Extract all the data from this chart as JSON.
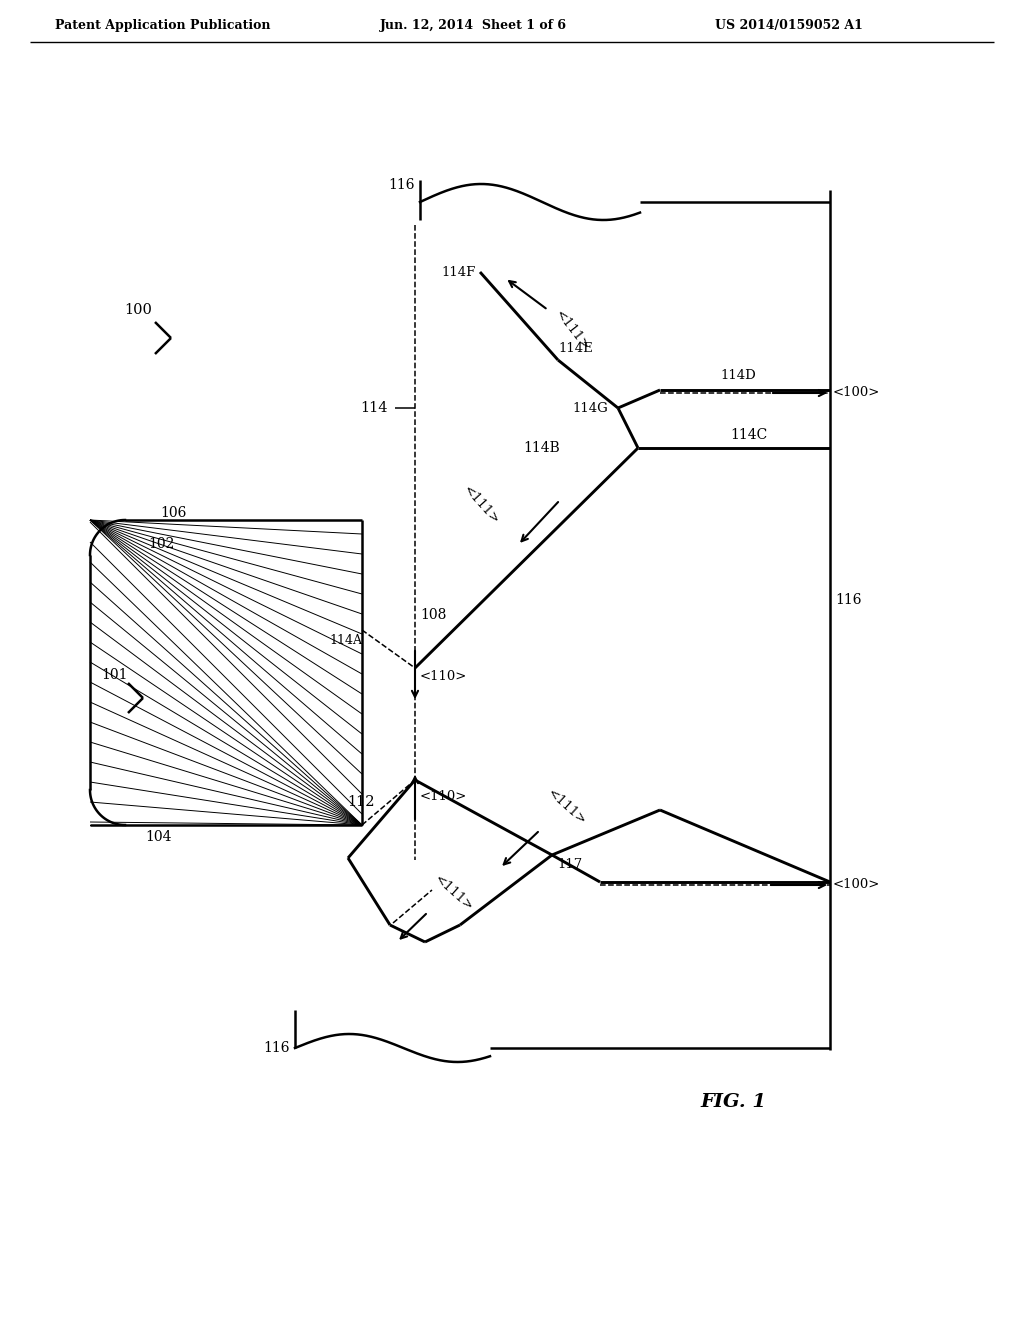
{
  "header_left": "Patent Application Publication",
  "header_mid": "Jun. 12, 2014  Sheet 1 of 6",
  "header_right": "US 2014/0159052 A1",
  "fig_label": "FIG. 1",
  "bg_color": "#ffffff",
  "lc": "#000000"
}
